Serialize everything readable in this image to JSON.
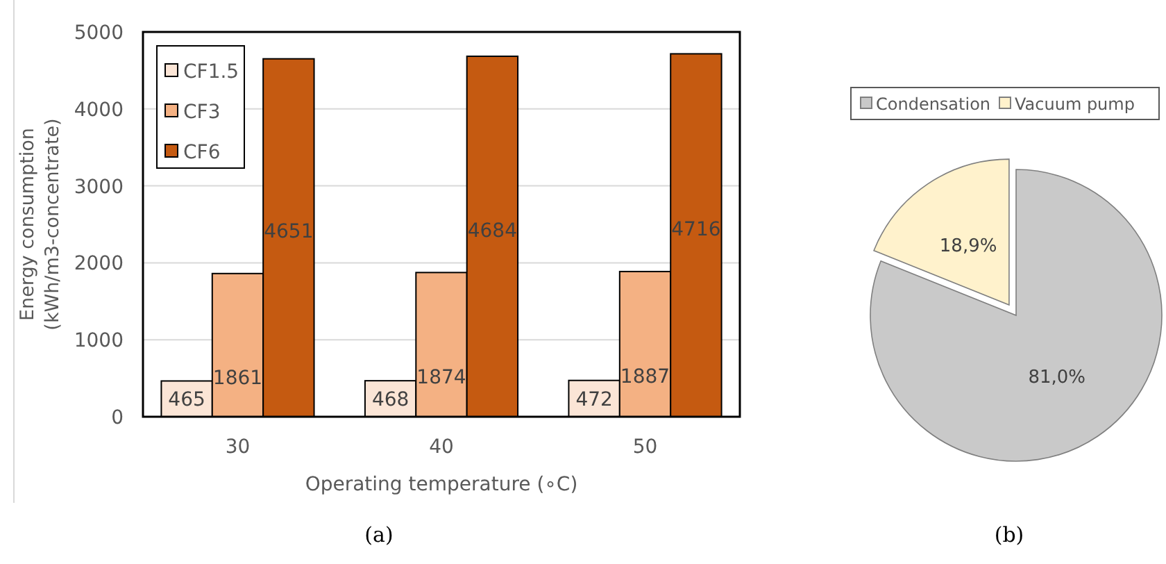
{
  "chart_data": [
    {
      "type": "bar",
      "xlabel": "Operating temperature (∘C)",
      "ylabel": "Energy consumption\n(kWh/m3-concentrate)",
      "categories": [
        "30",
        "40",
        "50"
      ],
      "series": [
        {
          "name": "CF1.5",
          "color": "#fbe5d6",
          "values": [
            465,
            468,
            472
          ]
        },
        {
          "name": "CF3",
          "color": "#f4b183",
          "values": [
            1861,
            1874,
            1887
          ]
        },
        {
          "name": "CF6",
          "color": "#c55a11",
          "values": [
            4651,
            4684,
            4716
          ]
        }
      ],
      "ylim": [
        0,
        5000
      ],
      "yticks": [
        0,
        1000,
        2000,
        3000,
        4000,
        5000
      ],
      "grid": "y",
      "legend": "top left",
      "data_labels": true,
      "annotations": [
        "(a)"
      ]
    },
    {
      "type": "pie",
      "categories": [
        "Condensation",
        "Vacuum pump"
      ],
      "values": [
        81.0,
        18.9
      ],
      "colors": [
        "#c9c9c9",
        "#fff2cc"
      ],
      "value_labels": [
        "81,0%",
        "18,9%"
      ],
      "legend": "top",
      "annotations": [
        "(b)"
      ]
    }
  ]
}
